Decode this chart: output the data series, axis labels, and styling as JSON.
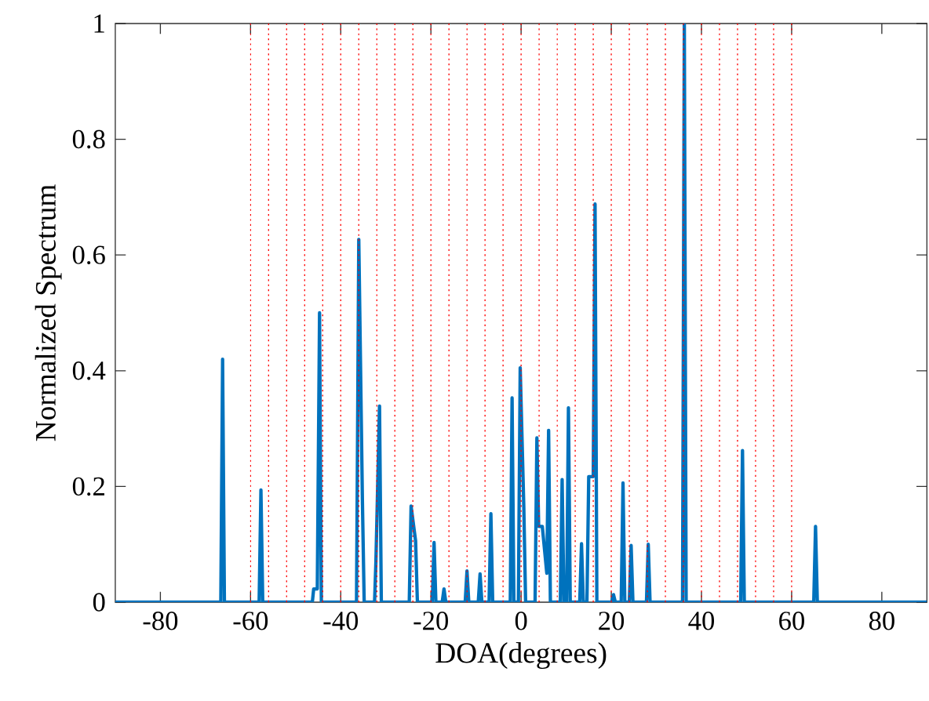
{
  "chart_data": {
    "type": "line",
    "xlabel": "DOA(degrees)",
    "ylabel": "Normalized Spectrum",
    "xlim": [
      -90,
      90
    ],
    "ylim": [
      0,
      1
    ],
    "xticks": [
      -80,
      -60,
      -40,
      -20,
      0,
      20,
      40,
      60,
      80
    ],
    "yticks": [
      0,
      0.2,
      0.4,
      0.6,
      0.8,
      1
    ],
    "series": [
      {
        "color": "#0072bd",
        "x": [
          -90,
          -66.6,
          -66.2,
          -65.8,
          -58.1,
          -57.7,
          -57.3,
          -46.3,
          -46,
          -45.2,
          -44.7,
          -44.3,
          -36.5,
          -36,
          -35.2,
          -34.8,
          -32.5,
          -32.2,
          -31.4,
          -31,
          -24.8,
          -24.4,
          -23.4,
          -23,
          -19.7,
          -19.3,
          -18.9,
          -17.5,
          -17.1,
          -16.7,
          -12.4,
          -12,
          -11.6,
          -9.5,
          -9.1,
          -8.7,
          -7.1,
          -6.7,
          -6.3,
          -2.4,
          -2,
          -1.6,
          -0.6,
          -0.2,
          0.6,
          1,
          3.1,
          3.5,
          3.9,
          4.7,
          5.7,
          6.1,
          6.5,
          8.7,
          9.1,
          9.5,
          10.1,
          10.5,
          10.9,
          13,
          13.4,
          13.8,
          14.6,
          15,
          16,
          16.4,
          16.8,
          20.1,
          20.5,
          20.9,
          22.2,
          22.6,
          23,
          24,
          24.4,
          24.8,
          27.8,
          28.2,
          28.6,
          35.8,
          36.2,
          36.6,
          48.7,
          49.1,
          49.5,
          64.9,
          65.3,
          65.7,
          90
        ],
        "values": [
          0,
          0,
          0.42,
          0,
          0,
          0.194,
          0,
          0,
          0.023,
          0.023,
          0.5,
          0,
          0,
          0.627,
          0.178,
          0,
          0,
          0.07,
          0.339,
          0,
          0,
          0.166,
          0.106,
          0,
          0,
          0.103,
          0,
          0,
          0.023,
          0,
          0,
          0.054,
          0,
          0,
          0.049,
          0,
          0,
          0.153,
          0,
          0,
          0.353,
          0,
          0,
          0.405,
          0.164,
          0,
          0,
          0.284,
          0.131,
          0.131,
          0.05,
          0.297,
          0,
          0,
          0.212,
          0,
          0,
          0.336,
          0,
          0,
          0.101,
          0,
          0,
          0.217,
          0.217,
          0.688,
          0,
          0,
          0.013,
          0,
          0,
          0.206,
          0,
          0,
          0.098,
          0,
          0,
          0.1,
          0,
          0,
          1,
          0,
          0,
          0.262,
          0,
          0,
          0.131,
          0,
          0
        ]
      }
    ],
    "ref_lines": [
      {
        "axis": "x",
        "value": -60,
        "color": "#ff0000",
        "line_style": "dotted"
      },
      {
        "axis": "x",
        "value": -56,
        "color": "#ff0000",
        "line_style": "dotted"
      },
      {
        "axis": "x",
        "value": -52,
        "color": "#ff0000",
        "line_style": "dotted"
      },
      {
        "axis": "x",
        "value": -48,
        "color": "#ff0000",
        "line_style": "dotted"
      },
      {
        "axis": "x",
        "value": -44,
        "color": "#ff0000",
        "line_style": "dotted"
      },
      {
        "axis": "x",
        "value": -40,
        "color": "#ff0000",
        "line_style": "dotted"
      },
      {
        "axis": "x",
        "value": -36,
        "color": "#ff0000",
        "line_style": "dotted"
      },
      {
        "axis": "x",
        "value": -32,
        "color": "#ff0000",
        "line_style": "dotted"
      },
      {
        "axis": "x",
        "value": -28,
        "color": "#ff0000",
        "line_style": "dotted"
      },
      {
        "axis": "x",
        "value": -24,
        "color": "#ff0000",
        "line_style": "dotted"
      },
      {
        "axis": "x",
        "value": -20,
        "color": "#ff0000",
        "line_style": "dotted"
      },
      {
        "axis": "x",
        "value": -16,
        "color": "#ff0000",
        "line_style": "dotted"
      },
      {
        "axis": "x",
        "value": -12,
        "color": "#ff0000",
        "line_style": "dotted"
      },
      {
        "axis": "x",
        "value": -8,
        "color": "#ff0000",
        "line_style": "dotted"
      },
      {
        "axis": "x",
        "value": -4,
        "color": "#ff0000",
        "line_style": "dotted"
      },
      {
        "axis": "x",
        "value": 0,
        "color": "#ff0000",
        "line_style": "dotted"
      },
      {
        "axis": "x",
        "value": 4,
        "color": "#ff0000",
        "line_style": "dotted"
      },
      {
        "axis": "x",
        "value": 8,
        "color": "#ff0000",
        "line_style": "dotted"
      },
      {
        "axis": "x",
        "value": 12,
        "color": "#ff0000",
        "line_style": "dotted"
      },
      {
        "axis": "x",
        "value": 16,
        "color": "#ff0000",
        "line_style": "dotted"
      },
      {
        "axis": "x",
        "value": 20,
        "color": "#ff0000",
        "line_style": "dotted"
      },
      {
        "axis": "x",
        "value": 24,
        "color": "#ff0000",
        "line_style": "dotted"
      },
      {
        "axis": "x",
        "value": 28,
        "color": "#ff0000",
        "line_style": "dotted"
      },
      {
        "axis": "x",
        "value": 32,
        "color": "#ff0000",
        "line_style": "dotted"
      },
      {
        "axis": "x",
        "value": 36,
        "color": "#ff0000",
        "line_style": "dotted"
      },
      {
        "axis": "x",
        "value": 40,
        "color": "#ff0000",
        "line_style": "dotted"
      },
      {
        "axis": "x",
        "value": 44,
        "color": "#ff0000",
        "line_style": "dotted"
      },
      {
        "axis": "x",
        "value": 48,
        "color": "#ff0000",
        "line_style": "dotted"
      },
      {
        "axis": "x",
        "value": 52,
        "color": "#ff0000",
        "line_style": "dotted"
      },
      {
        "axis": "x",
        "value": 56,
        "color": "#ff0000",
        "line_style": "dotted"
      },
      {
        "axis": "x",
        "value": 60,
        "color": "#ff0000",
        "line_style": "dotted"
      }
    ]
  }
}
